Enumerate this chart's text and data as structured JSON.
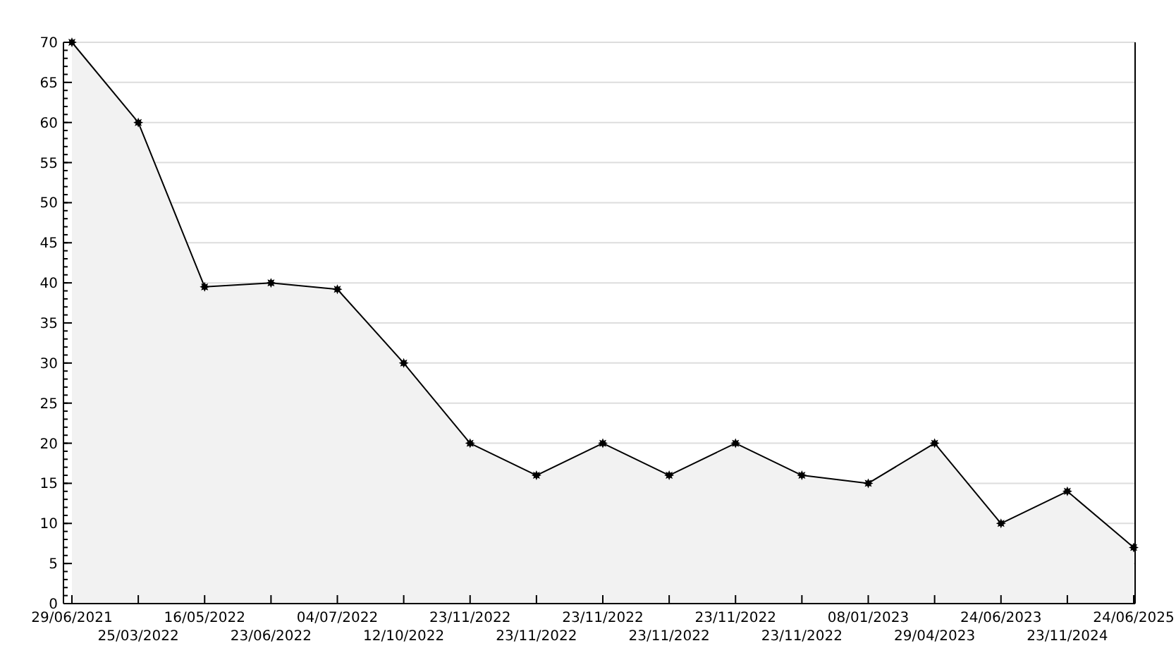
{
  "chart_data": {
    "type": "area",
    "categories": [
      "29/06/2021",
      "25/03/2022",
      "16/05/2022",
      "23/06/2022",
      "04/07/2022",
      "12/10/2022",
      "23/11/2022",
      "23/11/2022",
      "23/11/2022",
      "23/11/2022",
      "23/11/2022",
      "23/11/2022",
      "08/01/2023",
      "29/04/2023",
      "24/06/2023",
      "23/11/2024",
      "24/06/2025"
    ],
    "series": [
      {
        "color": "#000000",
        "values": [
          70,
          60,
          39.5,
          40,
          39.2,
          30,
          20,
          16,
          20,
          16,
          20,
          16,
          15,
          20,
          10,
          14,
          7
        ]
      }
    ],
    "ylim": [
      0,
      70
    ],
    "yticks": [
      0,
      5,
      10,
      15,
      20,
      25,
      30,
      35,
      40,
      45,
      50,
      55,
      60,
      65,
      70
    ],
    "grid": "y",
    "marker": "star",
    "line_style": "solid"
  }
}
